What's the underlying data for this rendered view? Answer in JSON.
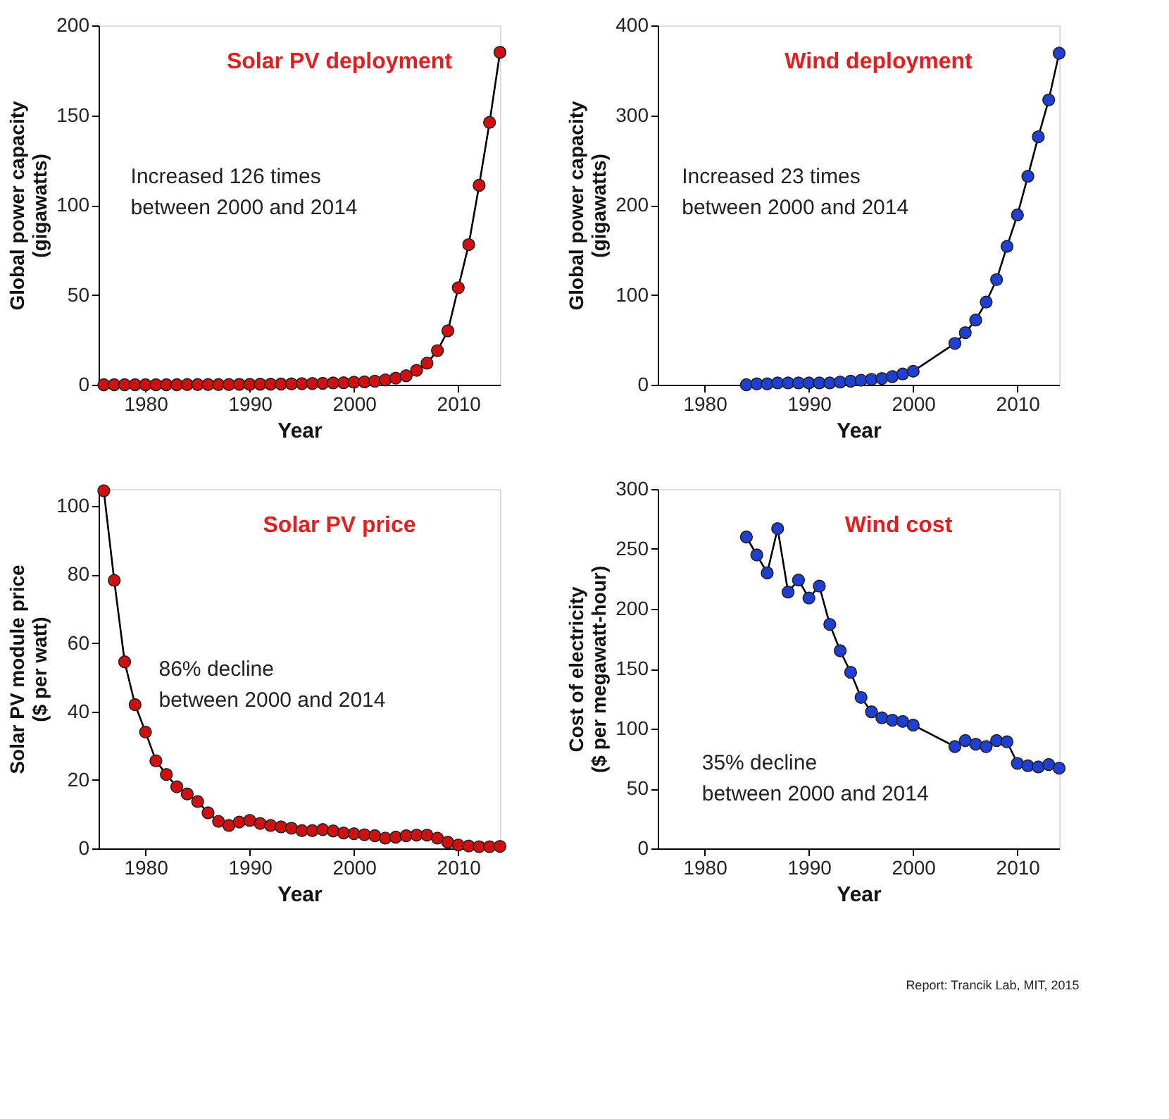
{
  "chart_data": [
    {
      "type": "line",
      "title": "Solar PV deployment",
      "xlabel": "Year",
      "ylabel": "Global power capacity\n(gigawatts)",
      "x": [
        1976,
        1977,
        1978,
        1979,
        1980,
        1981,
        1982,
        1983,
        1984,
        1985,
        1986,
        1987,
        1988,
        1989,
        1990,
        1991,
        1992,
        1993,
        1994,
        1995,
        1996,
        1997,
        1998,
        1999,
        2000,
        2001,
        2002,
        2003,
        2004,
        2005,
        2006,
        2007,
        2008,
        2009,
        2010,
        2011,
        2012,
        2013,
        2014
      ],
      "values": [
        0,
        0,
        0,
        0,
        0,
        0,
        0,
        0,
        0.1,
        0.1,
        0.1,
        0.1,
        0.1,
        0.2,
        0.2,
        0.3,
        0.3,
        0.4,
        0.5,
        0.6,
        0.7,
        0.8,
        1,
        1.1,
        1.4,
        1.6,
        2,
        2.7,
        3.7,
        5,
        8,
        12,
        19,
        30,
        54,
        78,
        111,
        146,
        185
      ],
      "color": "#d01010",
      "marker": "circle",
      "line_style": "solid",
      "xlim": [
        1975.5,
        2014
      ],
      "xticks": [
        1980,
        1990,
        2000,
        2010
      ],
      "ylim": [
        0,
        200
      ],
      "yticks": [
        0,
        50,
        100,
        150,
        200
      ],
      "grid": false,
      "annotations": [
        "Increased  126 times\nbetween 2000 and 2014"
      ]
    },
    {
      "type": "line",
      "title": "Wind deployment",
      "xlabel": "Year",
      "ylabel": "Global power capacity\n(gigawatts)",
      "x": [
        1984,
        1985,
        1986,
        1987,
        1988,
        1989,
        1990,
        1991,
        1992,
        1993,
        1994,
        1995,
        1996,
        1997,
        1998,
        1999,
        2000,
        2004,
        2005,
        2006,
        2007,
        2008,
        2009,
        2010,
        2011,
        2012,
        2013,
        2014
      ],
      "values": [
        0,
        1,
        1,
        2,
        2,
        2,
        2,
        2,
        2,
        3,
        4,
        5,
        6,
        7,
        9,
        12,
        15,
        46,
        58,
        72,
        92,
        117,
        154,
        189,
        232,
        276,
        317,
        369
      ],
      "color": "#1f3fd0",
      "marker": "circle",
      "line_style": "solid",
      "xlim": [
        1975.5,
        2014
      ],
      "xticks": [
        1980,
        1990,
        2000,
        2010
      ],
      "ylim": [
        0,
        400
      ],
      "yticks": [
        0,
        100,
        200,
        300,
        400
      ],
      "grid": false,
      "annotations": [
        "Increased 23 times\nbetween 2000 and 2014"
      ]
    },
    {
      "type": "line",
      "title": "Solar PV price",
      "xlabel": "Year",
      "ylabel": "Solar PV module price\n($ per watt)",
      "x": [
        1976,
        1977,
        1978,
        1979,
        1980,
        1981,
        1982,
        1983,
        1984,
        1985,
        1986,
        1987,
        1988,
        1989,
        1990,
        1991,
        1992,
        1993,
        1994,
        1995,
        1996,
        1997,
        1998,
        1999,
        2000,
        2001,
        2002,
        2003,
        2004,
        2005,
        2006,
        2007,
        2008,
        2009,
        2010,
        2011,
        2012,
        2013,
        2014
      ],
      "values": [
        104.5,
        78.3,
        54.5,
        42,
        34,
        25.6,
        21.6,
        18,
        15.9,
        13.7,
        10.4,
        7.9,
        6.7,
        7.7,
        8.2,
        7.3,
        6.7,
        6.3,
        5.9,
        5.2,
        5.2,
        5.5,
        5.1,
        4.5,
        4.3,
        4,
        3.7,
        3,
        3.3,
        3.7,
        3.9,
        3.9,
        3,
        1.8,
        1,
        0.7,
        0.5,
        0.5,
        0.6
      ],
      "color": "#d01010",
      "marker": "circle",
      "line_style": "solid",
      "xlim": [
        1975.5,
        2014
      ],
      "xticks": [
        1980,
        1990,
        2000,
        2010
      ],
      "ylim": [
        0,
        105
      ],
      "yticks": [
        0,
        20,
        40,
        60,
        80,
        100
      ],
      "grid": false,
      "annotations": [
        "86% decline\nbetween 2000 and 2014"
      ]
    },
    {
      "type": "line",
      "title": "Wind cost",
      "xlabel": "Year",
      "ylabel": "Cost of electricity\n($ per megawatt-hour)",
      "x": [
        1984,
        1985,
        1986,
        1987,
        1988,
        1989,
        1990,
        1991,
        1992,
        1993,
        1994,
        1995,
        1996,
        1997,
        1998,
        1999,
        2000,
        2004,
        2005,
        2006,
        2007,
        2008,
        2009,
        2010,
        2011,
        2012,
        2013,
        2014
      ],
      "values": [
        260,
        245,
        230,
        267,
        214,
        224,
        209,
        219,
        187,
        165,
        147,
        126,
        114,
        109,
        107,
        106,
        103,
        85,
        90,
        87,
        85,
        90,
        89,
        71,
        69,
        68,
        70,
        67
      ],
      "color": "#1f3fd0",
      "marker": "circle",
      "line_style": "solid",
      "xlim": [
        1975.5,
        2014
      ],
      "xticks": [
        1980,
        1990,
        2000,
        2010
      ],
      "ylim": [
        0,
        300
      ],
      "yticks": [
        0,
        50,
        100,
        150,
        200,
        250,
        300
      ],
      "grid": false,
      "annotations": [
        "35% decline\nbetween 2000 and 2014",
        "Report: Trancik Lab, MIT, 2015"
      ]
    }
  ]
}
